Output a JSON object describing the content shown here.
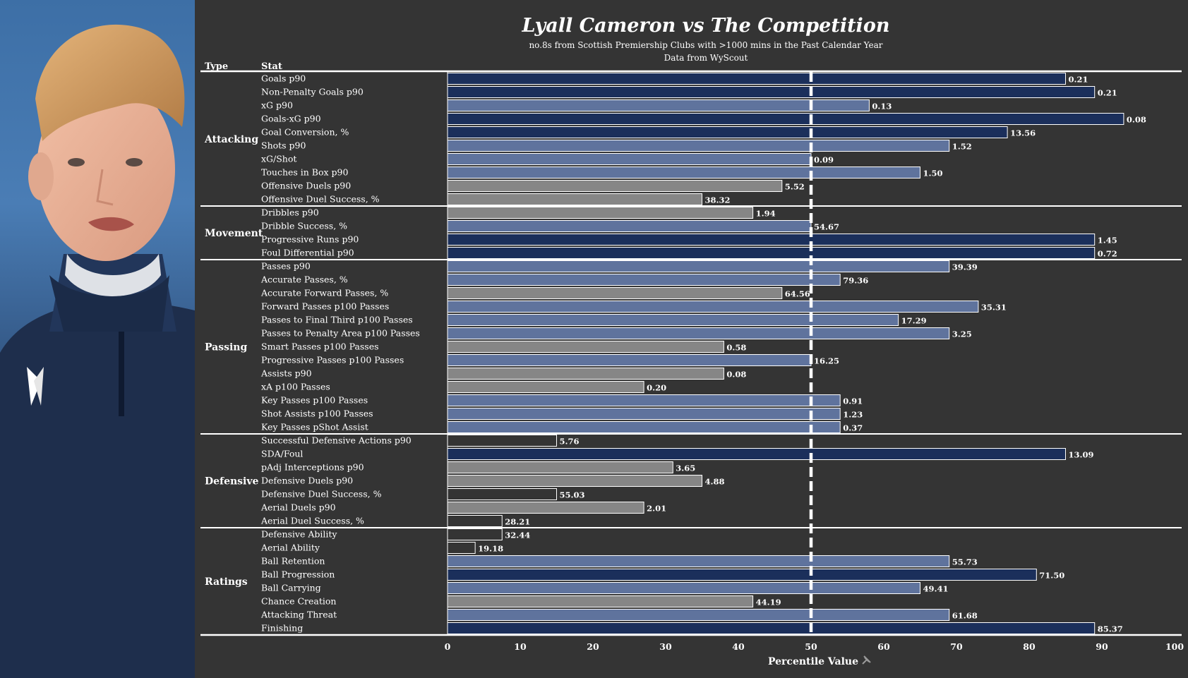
{
  "chart_data": {
    "type": "bar",
    "orientation": "horizontal",
    "title": "Lyall Cameron vs The Competition",
    "subtitle_line1": "no.8s from Scottish Premiership Clubs  with >1000 mins in the Past Calendar Year",
    "subtitle_line2": "Data from WyScout",
    "column_headers": {
      "type": "Type",
      "stat": "Stat"
    },
    "xlabel": "Percentile Value",
    "xlim": [
      0,
      100
    ],
    "xticks": [
      "0",
      "10",
      "20",
      "30",
      "40",
      "50",
      "60",
      "70",
      "80",
      "90",
      "100"
    ],
    "reference_line": 50,
    "colors": {
      "high": "#1b2f5b",
      "mid": "#5f739d",
      "low": "#868686",
      "bottom": "#343434"
    },
    "groups": [
      {
        "name": "Attacking",
        "stats": [
          {
            "stat": "Goals p90",
            "percentile": 85,
            "value": "0.21",
            "tier": "high"
          },
          {
            "stat": "Non-Penalty Goals p90",
            "percentile": 89,
            "value": "0.21",
            "tier": "high"
          },
          {
            "stat": "xG p90",
            "percentile": 58,
            "value": "0.13",
            "tier": "mid"
          },
          {
            "stat": "Goals-xG p90",
            "percentile": 93,
            "value": "0.08",
            "tier": "high"
          },
          {
            "stat": "Goal Conversion, %",
            "percentile": 77,
            "value": "13.56",
            "tier": "high"
          },
          {
            "stat": "Shots p90",
            "percentile": 69,
            "value": "1.52",
            "tier": "mid"
          },
          {
            "stat": "xG/Shot",
            "percentile": 50,
            "value": "0.09",
            "tier": "mid"
          },
          {
            "stat": "Touches in Box p90",
            "percentile": 65,
            "value": "1.50",
            "tier": "mid"
          },
          {
            "stat": "Offensive Duels p90",
            "percentile": 46,
            "value": "5.52",
            "tier": "low"
          },
          {
            "stat": "Offensive Duel Success, %",
            "percentile": 35,
            "value": "38.32",
            "tier": "low"
          }
        ]
      },
      {
        "name": "Movement",
        "stats": [
          {
            "stat": "Dribbles p90",
            "percentile": 42,
            "value": "1.94",
            "tier": "low"
          },
          {
            "stat": "Dribble Success, %",
            "percentile": 50,
            "value": "54.67",
            "tier": "mid"
          },
          {
            "stat": "Progressive Runs p90",
            "percentile": 89,
            "value": "1.45",
            "tier": "high"
          },
          {
            "stat": "Foul Differential p90",
            "percentile": 89,
            "value": "0.72",
            "tier": "high"
          }
        ]
      },
      {
        "name": "Passing",
        "stats": [
          {
            "stat": "Passes p90",
            "percentile": 69,
            "value": "39.39",
            "tier": "mid"
          },
          {
            "stat": "Accurate Passes, %",
            "percentile": 54,
            "value": "79.36",
            "tier": "mid"
          },
          {
            "stat": "Accurate Forward Passes, %",
            "percentile": 46,
            "value": "64.56",
            "tier": "low"
          },
          {
            "stat": "Forward Passes p100 Passes",
            "percentile": 73,
            "value": "35.31",
            "tier": "mid"
          },
          {
            "stat": "Passes to Final Third p100 Passes",
            "percentile": 62,
            "value": "17.29",
            "tier": "mid"
          },
          {
            "stat": "Passes to Penalty Area p100 Passes",
            "percentile": 69,
            "value": "3.25",
            "tier": "mid"
          },
          {
            "stat": "Smart Passes p100 Passes",
            "percentile": 38,
            "value": "0.58",
            "tier": "low"
          },
          {
            "stat": "Progressive Passes p100 Passes",
            "percentile": 50,
            "value": "16.25",
            "tier": "mid"
          },
          {
            "stat": "Assists p90",
            "percentile": 38,
            "value": "0.08",
            "tier": "low"
          },
          {
            "stat": "xA p100 Passes",
            "percentile": 27,
            "value": "0.20",
            "tier": "low"
          },
          {
            "stat": "Key Passes p100 Passes",
            "percentile": 54,
            "value": "0.91",
            "tier": "mid"
          },
          {
            "stat": "Shot Assists p100 Passes",
            "percentile": 54,
            "value": "1.23",
            "tier": "mid"
          },
          {
            "stat": "Key Passes pShot Assist",
            "percentile": 54,
            "value": "0.37",
            "tier": "mid"
          }
        ]
      },
      {
        "name": "Defensive",
        "stats": [
          {
            "stat": "Successful Defensive Actions p90",
            "percentile": 15,
            "value": "5.76",
            "tier": "bottom"
          },
          {
            "stat": "SDA/Foul",
            "percentile": 85,
            "value": "13.09",
            "tier": "high"
          },
          {
            "stat": "pAdj Interceptions p90",
            "percentile": 31,
            "value": "3.65",
            "tier": "low"
          },
          {
            "stat": "Defensive Duels p90",
            "percentile": 35,
            "value": "4.88",
            "tier": "low"
          },
          {
            "stat": "Defensive Duel Success, %",
            "percentile": 15,
            "value": "55.03",
            "tier": "bottom"
          },
          {
            "stat": "Aerial Duels p90",
            "percentile": 27,
            "value": "2.01",
            "tier": "low"
          },
          {
            "stat": "Aerial Duel Success, %",
            "percentile": 7.5,
            "value": "28.21",
            "tier": "bottom"
          }
        ]
      },
      {
        "name": "Ratings",
        "stats": [
          {
            "stat": "Defensive Ability",
            "percentile": 7.5,
            "value": "32.44",
            "tier": "bottom"
          },
          {
            "stat": "Aerial Ability",
            "percentile": 3.8,
            "value": "19.18",
            "tier": "bottom"
          },
          {
            "stat": "Ball Retention",
            "percentile": 69,
            "value": "55.73",
            "tier": "mid"
          },
          {
            "stat": "Ball Progression",
            "percentile": 81,
            "value": "71.50",
            "tier": "high"
          },
          {
            "stat": "Ball Carrying",
            "percentile": 65,
            "value": "49.41",
            "tier": "mid"
          },
          {
            "stat": "Chance Creation",
            "percentile": 42,
            "value": "44.19",
            "tier": "low"
          },
          {
            "stat": "Attacking Threat",
            "percentile": 69,
            "value": "61.68",
            "tier": "mid"
          },
          {
            "stat": "Finishing",
            "percentile": 89,
            "value": "85.37",
            "tier": "high"
          }
        ]
      }
    ]
  },
  "photo": {
    "icon": "player-photo"
  }
}
